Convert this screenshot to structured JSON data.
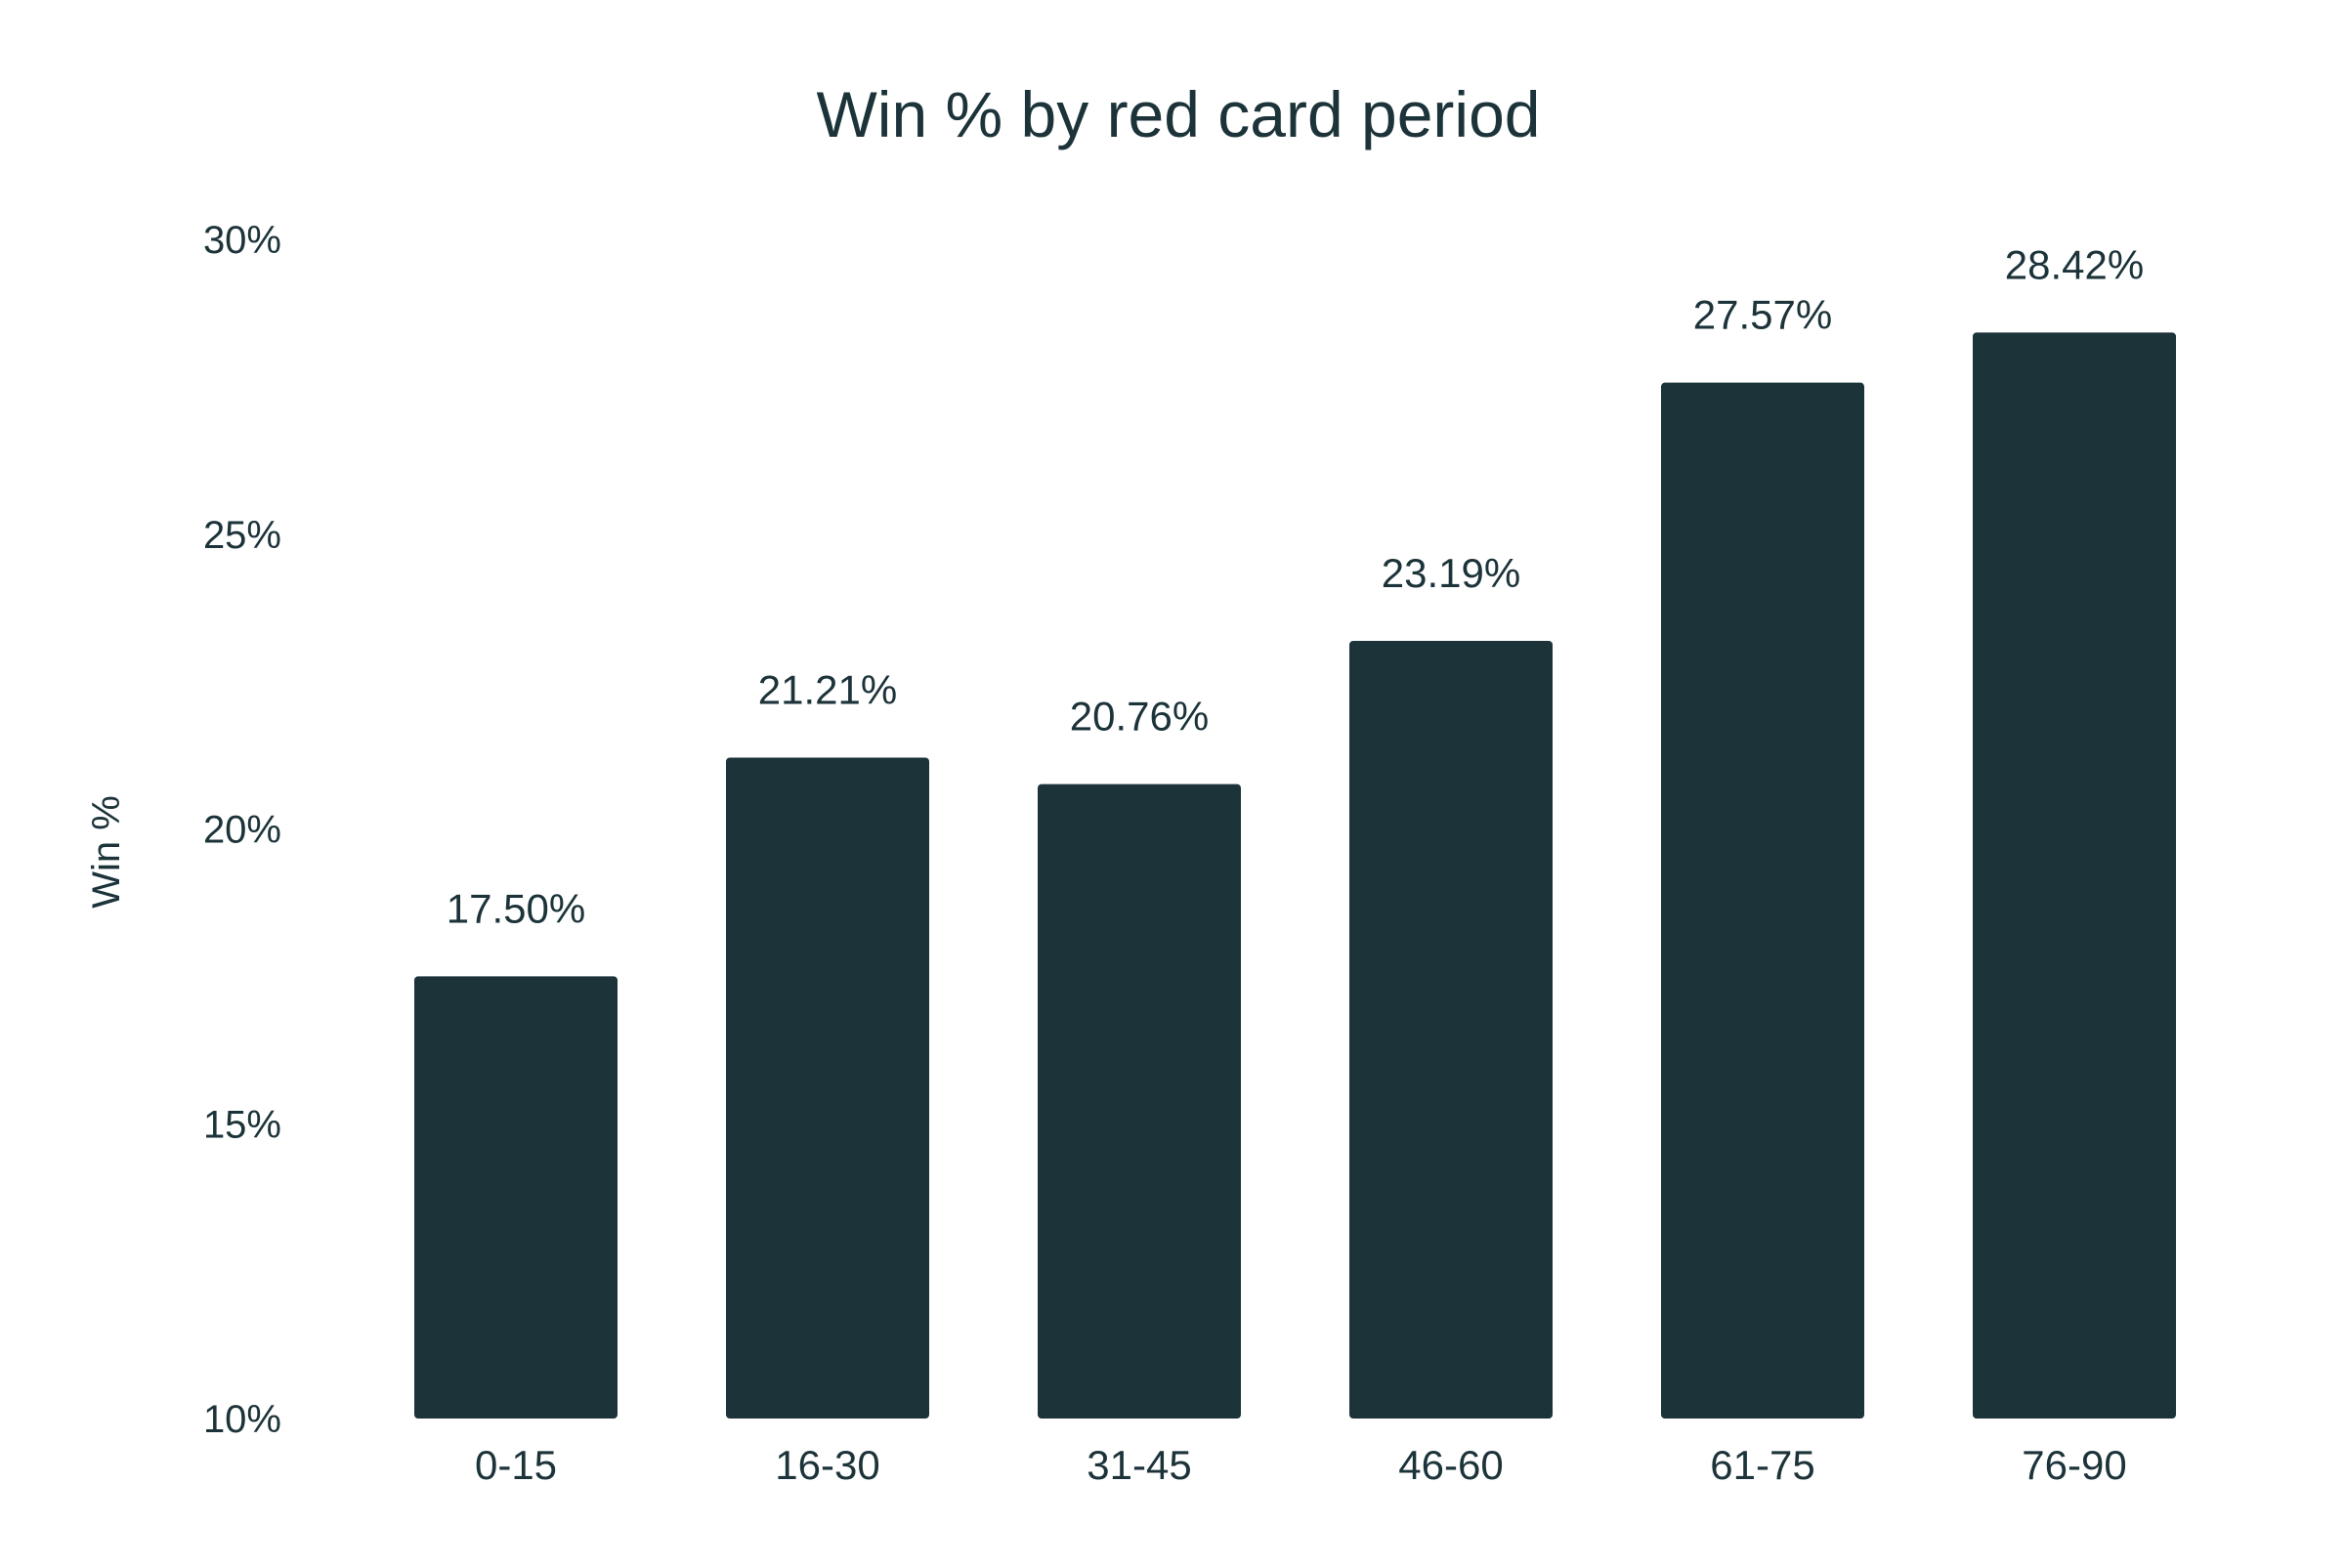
{
  "colors": {
    "bar": "#1c333a",
    "text": "#1c333a",
    "background": "#ffffff"
  },
  "chart_data": {
    "type": "bar",
    "title": "Win % by red card period",
    "xlabel": "",
    "ylabel": "Win %",
    "categories": [
      "0-15",
      "16-30",
      "31-45",
      "46-60",
      "61-75",
      "76-90"
    ],
    "values": [
      17.5,
      21.21,
      20.76,
      23.19,
      27.57,
      28.42
    ],
    "value_labels": [
      "17.50%",
      "21.21%",
      "20.76%",
      "23.19%",
      "27.57%",
      "28.42%"
    ],
    "yticks": [
      10,
      15,
      20,
      25,
      30
    ],
    "ytick_labels": [
      "10%",
      "15%",
      "20%",
      "25%",
      "30%"
    ],
    "ylim": [
      10,
      30
    ],
    "grid": false,
    "legend": "none"
  }
}
